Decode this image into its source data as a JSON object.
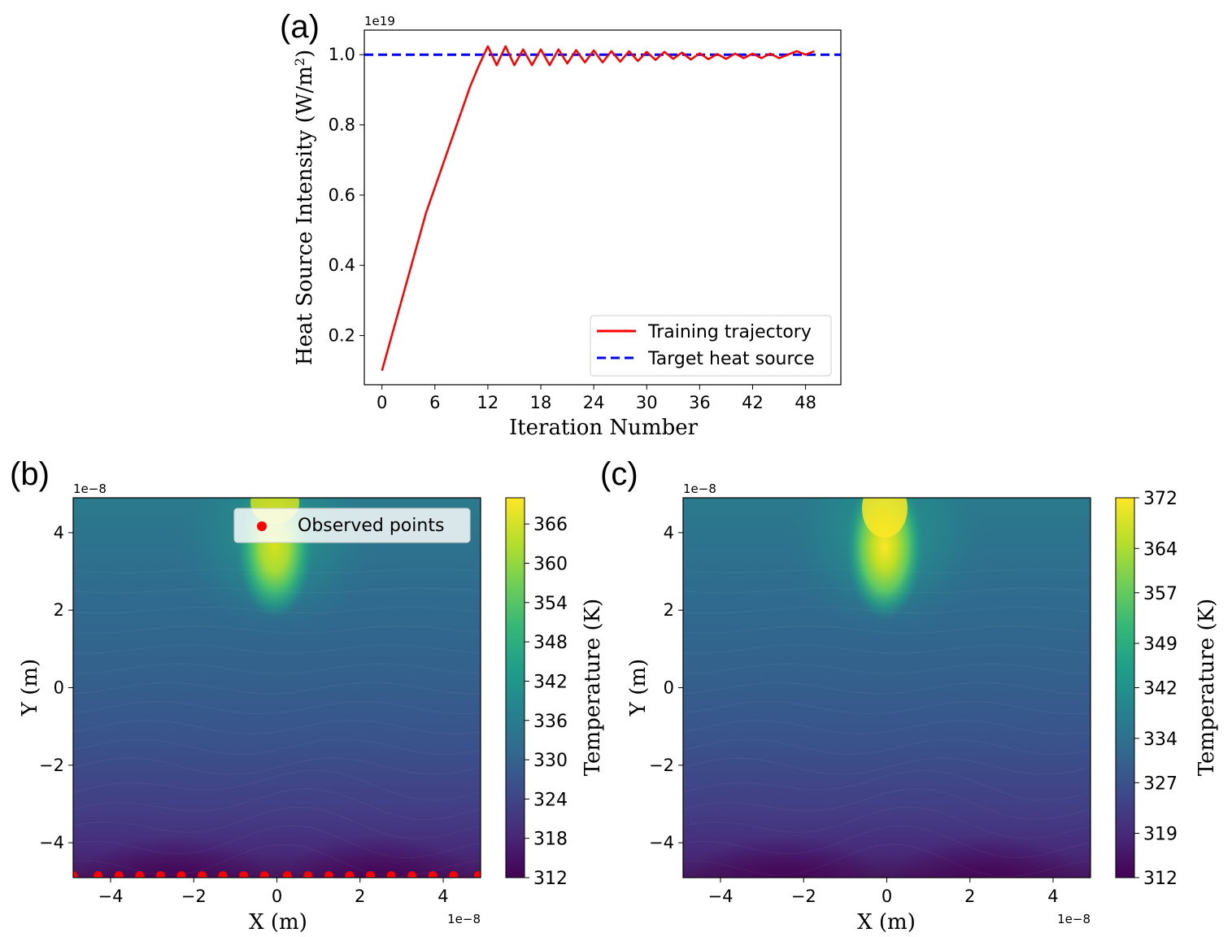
{
  "panel_labels": {
    "a": "(a)",
    "b": "(b)",
    "c": "(c)"
  },
  "chart_data": [
    {
      "panel": "(a)",
      "type": "line",
      "xlabel": "Iteration Number",
      "ylabel": "Heat Source Intensity (W/m",
      "ylabel_sup": "2",
      "ylabel_close": ")",
      "y_offset_text": "1e19",
      "xlim": [
        -2,
        52
      ],
      "ylim": [
        0.06,
        1.07
      ],
      "xticks": [
        0,
        6,
        12,
        18,
        24,
        30,
        36,
        42,
        48
      ],
      "xtick_labels": [
        "0",
        "6",
        "12",
        "18",
        "24",
        "30",
        "36",
        "42",
        "48"
      ],
      "yticks": [
        0.2,
        0.4,
        0.6,
        0.8,
        1.0
      ],
      "ytick_labels": [
        "0.2",
        "0.4",
        "0.6",
        "0.8",
        "1.0"
      ],
      "legend_position": "lower-right",
      "series": [
        {
          "name": "Training trajectory",
          "color": "#ff0000",
          "style": "solid",
          "x": [
            0,
            5,
            10,
            11,
            12,
            13,
            14,
            15,
            16,
            17,
            18,
            19,
            20,
            21,
            22,
            23,
            24,
            25,
            26,
            27,
            28,
            29,
            30,
            31,
            32,
            33,
            34,
            35,
            36,
            37,
            38,
            39,
            40,
            41,
            42,
            43,
            44,
            45,
            46,
            47,
            48,
            49
          ],
          "y": [
            0.1,
            0.55,
            0.91,
            0.97,
            1.024,
            0.97,
            1.024,
            0.97,
            1.015,
            0.97,
            1.015,
            0.97,
            1.015,
            0.975,
            1.013,
            0.978,
            1.012,
            0.978,
            1.01,
            0.98,
            1.01,
            0.982,
            1.008,
            0.985,
            1.008,
            0.988,
            1.006,
            0.986,
            1.004,
            0.987,
            1.002,
            0.988,
            1.003,
            0.99,
            1.003,
            0.99,
            1.003,
            0.99,
            1.0,
            1.01,
            1.0,
            1.01
          ]
        },
        {
          "name": "Target heat source",
          "color": "#0000ff",
          "style": "dashed",
          "x": [
            -2,
            52
          ],
          "y": [
            1.0,
            1.0
          ]
        }
      ]
    },
    {
      "panel": "(b)",
      "type": "heatmap",
      "xlabel": "X (m)",
      "ylabel": "Y (m)",
      "x_offset_text": "1e−8",
      "y_offset_text": "1e−8",
      "xlim": [
        -4.9,
        4.9
      ],
      "ylim": [
        -4.9,
        4.9
      ],
      "xticks": [
        -4,
        -2,
        0,
        2,
        4
      ],
      "xtick_labels": [
        "−4",
        "−2",
        "0",
        "2",
        "4"
      ],
      "yticks": [
        -4,
        -2,
        0,
        2,
        4
      ],
      "ytick_labels": [
        "−4",
        "−2",
        "0",
        "2",
        "4"
      ],
      "colorbar_label": "Temperature (K)",
      "colorbar_range": [
        312,
        370
      ],
      "colorbar_ticks": [
        312,
        318,
        324,
        330,
        336,
        342,
        348,
        354,
        360,
        366
      ],
      "colorbar_tick_labels": [
        "312",
        "318",
        "324",
        "330",
        "336",
        "342",
        "348",
        "354",
        "360",
        "366"
      ],
      "legend": "Observed points",
      "observed_points": {
        "y": -4.85,
        "x": [
          -4.9,
          -4.3,
          -3.8,
          -3.3,
          -2.8,
          -2.3,
          -1.8,
          -1.3,
          -0.8,
          -0.3,
          0.25,
          0.75,
          1.25,
          1.75,
          2.25,
          2.75,
          3.25,
          3.75,
          4.25,
          4.85
        ]
      },
      "source": {
        "x": 0.0,
        "y_top": 4.9,
        "y_bottom": 2.0
      }
    },
    {
      "panel": "(c)",
      "type": "heatmap",
      "xlabel": "X (m)",
      "ylabel": "Y (m)",
      "x_offset_text": "1e−8",
      "y_offset_text": "1e−8",
      "xlim": [
        -4.9,
        4.9
      ],
      "ylim": [
        -4.9,
        4.9
      ],
      "xticks": [
        -4,
        -2,
        0,
        2,
        4
      ],
      "xtick_labels": [
        "−4",
        "−2",
        "0",
        "2",
        "4"
      ],
      "yticks": [
        -4,
        -2,
        0,
        2,
        4
      ],
      "ytick_labels": [
        "−4",
        "−2",
        "0",
        "2",
        "4"
      ],
      "colorbar_label": "Temperature (K)",
      "colorbar_range": [
        312,
        372
      ],
      "colorbar_ticks": [
        312,
        319,
        327,
        334,
        342,
        349,
        357,
        364,
        372
      ],
      "colorbar_tick_labels": [
        "312",
        "319",
        "327",
        "334",
        "342",
        "349",
        "357",
        "364",
        "372"
      ],
      "source": {
        "x": 0.0,
        "y_top": 4.9,
        "y_bottom": 2.0
      }
    }
  ]
}
